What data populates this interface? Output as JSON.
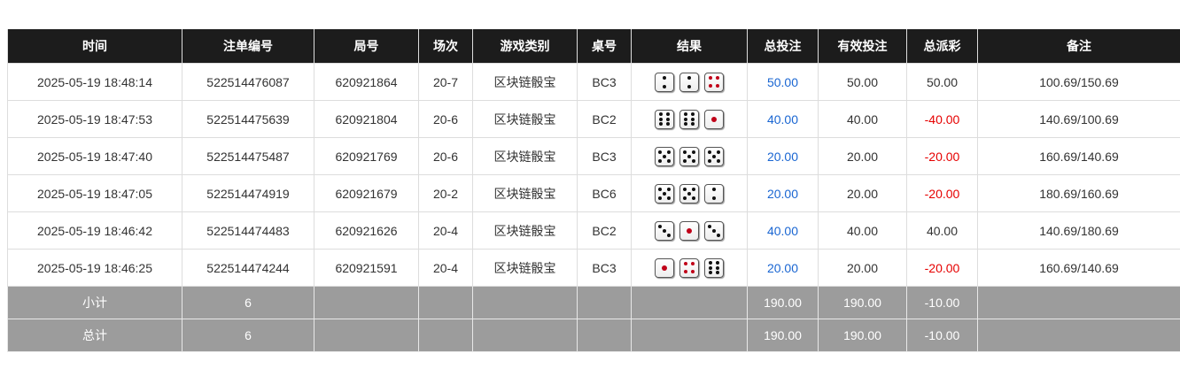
{
  "headers": [
    "时间",
    "注单编号",
    "局号",
    "场次",
    "游戏类别",
    "桌号",
    "结果",
    "总投注",
    "有效投注",
    "总派彩",
    "备注"
  ],
  "rows": [
    {
      "time": "2025-05-19 18:48:14",
      "bet_id": "522514476087",
      "round": "620921864",
      "session": "20-7",
      "game": "区块链骰宝",
      "table": "BC3",
      "dice": [
        2,
        2,
        4
      ],
      "total": "50.00",
      "valid": "50.00",
      "payout": "50.00",
      "payout_neg": false,
      "note": "100.69/150.69"
    },
    {
      "time": "2025-05-19 18:47:53",
      "bet_id": "522514475639",
      "round": "620921804",
      "session": "20-6",
      "game": "区块链骰宝",
      "table": "BC2",
      "dice": [
        6,
        6,
        1
      ],
      "total": "40.00",
      "valid": "40.00",
      "payout": "-40.00",
      "payout_neg": true,
      "note": "140.69/100.69"
    },
    {
      "time": "2025-05-19 18:47:40",
      "bet_id": "522514475487",
      "round": "620921769",
      "session": "20-6",
      "game": "区块链骰宝",
      "table": "BC3",
      "dice": [
        5,
        5,
        5
      ],
      "total": "20.00",
      "valid": "20.00",
      "payout": "-20.00",
      "payout_neg": true,
      "note": "160.69/140.69"
    },
    {
      "time": "2025-05-19 18:47:05",
      "bet_id": "522514474919",
      "round": "620921679",
      "session": "20-2",
      "game": "区块链骰宝",
      "table": "BC6",
      "dice": [
        5,
        5,
        2
      ],
      "total": "20.00",
      "valid": "20.00",
      "payout": "-20.00",
      "payout_neg": true,
      "note": "180.69/160.69"
    },
    {
      "time": "2025-05-19 18:46:42",
      "bet_id": "522514474483",
      "round": "620921626",
      "session": "20-4",
      "game": "区块链骰宝",
      "table": "BC2",
      "dice": [
        3,
        1,
        3
      ],
      "total": "40.00",
      "valid": "40.00",
      "payout": "40.00",
      "payout_neg": false,
      "note": "140.69/180.69"
    },
    {
      "time": "2025-05-19 18:46:25",
      "bet_id": "522514474244",
      "round": "620921591",
      "session": "20-4",
      "game": "区块链骰宝",
      "table": "BC3",
      "dice": [
        1,
        4,
        6
      ],
      "total": "20.00",
      "valid": "20.00",
      "payout": "-20.00",
      "payout_neg": true,
      "note": "160.69/140.69"
    }
  ],
  "summary": [
    {
      "label": "小计",
      "count": "6",
      "total": "190.00",
      "valid": "190.00",
      "payout": "-10.00"
    },
    {
      "label": "总计",
      "count": "6",
      "total": "190.00",
      "valid": "190.00",
      "payout": "-10.00"
    }
  ],
  "colors": {
    "header_bg": "#1c1c1c",
    "summary_bg": "#9c9c9c",
    "bet_blue": "#1a66d2",
    "negative_red": "#e60000",
    "dice_red_pips": "#c00018"
  }
}
